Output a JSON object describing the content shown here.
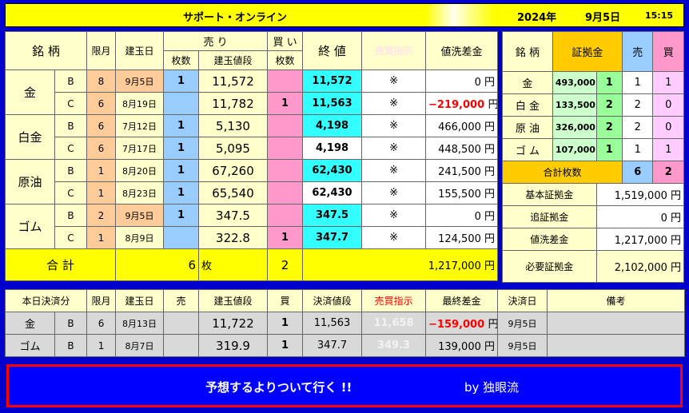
{
  "title": {
    "name": "サポート・オンライン",
    "year": "2024年",
    "date": "9月5日",
    "time": "15:15"
  },
  "positions": {
    "h": {
      "issue": "銘 柄",
      "limit": "限月",
      "open_date": "建玉日",
      "sell": "売 り",
      "buy": "買 い",
      "count": "枚数",
      "price": "建玉値段",
      "close": "終 値",
      "instruction": "売買指示",
      "diff": "値洗差金"
    },
    "rows": [
      {
        "commodity": "金",
        "cls": "B",
        "limit": "8",
        "date": "9月5日",
        "sell": "1",
        "price": "11,572",
        "buy": "",
        "close": "11,572",
        "mark": "※",
        "diff": "0",
        "unit": "円"
      },
      {
        "commodity": "",
        "cls": "C",
        "limit": "6",
        "date": "8月19日",
        "sell": "",
        "price": "11,782",
        "buy": "1",
        "close": "11,563",
        "mark": "※",
        "diff": "−219,000",
        "unit": "円"
      },
      {
        "commodity": "白金",
        "cls": "B",
        "limit": "6",
        "date": "7月12日",
        "sell": "1",
        "price": "5,130",
        "buy": "",
        "close": "4,198",
        "mark": "※",
        "diff": "466,000",
        "unit": "円"
      },
      {
        "commodity": "",
        "cls": "C",
        "limit": "6",
        "date": "7月17日",
        "sell": "1",
        "price": "5,095",
        "buy": "",
        "close": "4,198",
        "mark": "※",
        "diff": "448,500",
        "unit": "円"
      },
      {
        "commodity": "原油",
        "cls": "B",
        "limit": "1",
        "date": "8月20日",
        "sell": "1",
        "price": "67,260",
        "buy": "",
        "close": "62,430",
        "mark": "※",
        "diff": "241,500",
        "unit": "円"
      },
      {
        "commodity": "",
        "cls": "C",
        "limit": "1",
        "date": "8月23日",
        "sell": "1",
        "price": "65,540",
        "buy": "",
        "close": "62,430",
        "mark": "※",
        "diff": "155,500",
        "unit": "円"
      },
      {
        "commodity": "ゴム",
        "cls": "B",
        "limit": "2",
        "date": "9月5日",
        "sell": "1",
        "price": "347.5",
        "buy": "",
        "close": "347.5",
        "mark": "※",
        "diff": "0",
        "unit": "円"
      },
      {
        "commodity": "",
        "cls": "C",
        "limit": "1",
        "date": "8月9日",
        "sell": "",
        "price": "322.8",
        "buy": "1",
        "close": "347.7",
        "mark": "※",
        "diff": "124,500",
        "unit": "円"
      }
    ],
    "total": {
      "label": "合 計",
      "sell": "6",
      "unit": "枚",
      "buy": "2",
      "diff": "1,217,000",
      "yen": "円"
    }
  },
  "margin": {
    "h": {
      "issue": "銘 柄",
      "margin": "証拠金",
      "sell": "売",
      "buy": "買"
    },
    "rows": [
      {
        "name": "金",
        "amount": "493,000",
        "n": "1",
        "sell": "1",
        "buy": "1"
      },
      {
        "name": "白 金",
        "amount": "133,500",
        "n": "2",
        "sell": "2",
        "buy": "0"
      },
      {
        "name": "原 油",
        "amount": "326,000",
        "n": "2",
        "sell": "2",
        "buy": "0"
      },
      {
        "name": "ゴ ム",
        "amount": "107,000",
        "n": "1",
        "sell": "1",
        "buy": "1"
      }
    ],
    "total_count_label": "合計枚数",
    "total_sell": "6",
    "total_buy": "2",
    "summary": [
      {
        "label": "基本証拠金",
        "value": "1,519,000",
        "unit": "円"
      },
      {
        "label": "追証拠金",
        "value": "0",
        "unit": "円"
      },
      {
        "label": "値洗差金",
        "value": "1,217,000",
        "unit": "円"
      },
      {
        "label": "必要証拠金",
        "value": "2,102,000",
        "unit": "円"
      }
    ]
  },
  "settled": {
    "h": {
      "label": "本日決済分",
      "limit": "限月",
      "date": "建玉日",
      "sell": "売",
      "price": "建玉値段",
      "buy": "買",
      "settle_price": "決済値段",
      "instruction": "売買指示",
      "final_diff": "最終差金",
      "settle_date": "決済日",
      "note": "備考"
    },
    "rows": [
      {
        "name": "金",
        "cls": "B",
        "limit": "6",
        "date": "8月13日",
        "sell": "",
        "price": "11,722",
        "buy": "1",
        "settle": "11,563",
        "instr": "11,658",
        "diff": "−159,000",
        "unit": "円",
        "sdate": "9月5日",
        "note": ""
      },
      {
        "name": "ゴム",
        "cls": "B",
        "limit": "1",
        "date": "8月7日",
        "sell": "",
        "price": "319.9",
        "buy": "1",
        "settle": "347.7",
        "instr": "349.3",
        "diff": "139,000",
        "unit": "円",
        "sdate": "9月5日",
        "note": ""
      }
    ]
  },
  "banner": {
    "message": "予想するよりついて行く !!",
    "author": "by 独眼流"
  }
}
